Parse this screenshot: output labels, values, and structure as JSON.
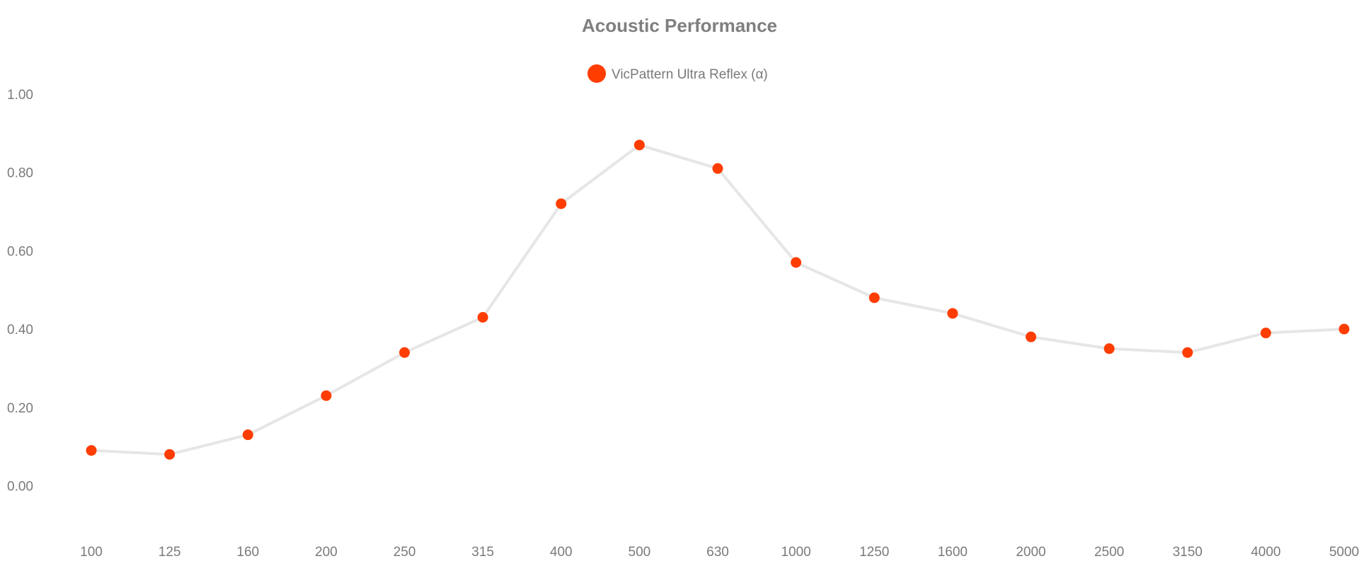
{
  "chart_data": {
    "type": "line",
    "title": "Acoustic Performance",
    "xlabel": "",
    "ylabel": "",
    "categories": [
      "100",
      "125",
      "160",
      "200",
      "250",
      "315",
      "400",
      "500",
      "630",
      "1000",
      "1250",
      "1600",
      "2000",
      "2500",
      "3150",
      "4000",
      "5000"
    ],
    "series": [
      {
        "name": "VicPattern Ultra Reflex (α)",
        "values": [
          0.09,
          0.08,
          0.13,
          0.23,
          0.34,
          0.43,
          0.72,
          0.87,
          0.81,
          0.57,
          0.48,
          0.44,
          0.38,
          0.35,
          0.34,
          0.39,
          0.4
        ]
      }
    ],
    "yticks": [
      "1.00",
      "0.80",
      "0.60",
      "0.40",
      "0.20",
      "0.00"
    ],
    "ylim": [
      -0.14,
      1.1
    ],
    "grid": false,
    "legend_position": "top-center",
    "colors": {
      "marker": "#ff3d00",
      "line": "#e6e6e6",
      "text": "#7a7a7a",
      "title": "#7f7f7f"
    }
  }
}
